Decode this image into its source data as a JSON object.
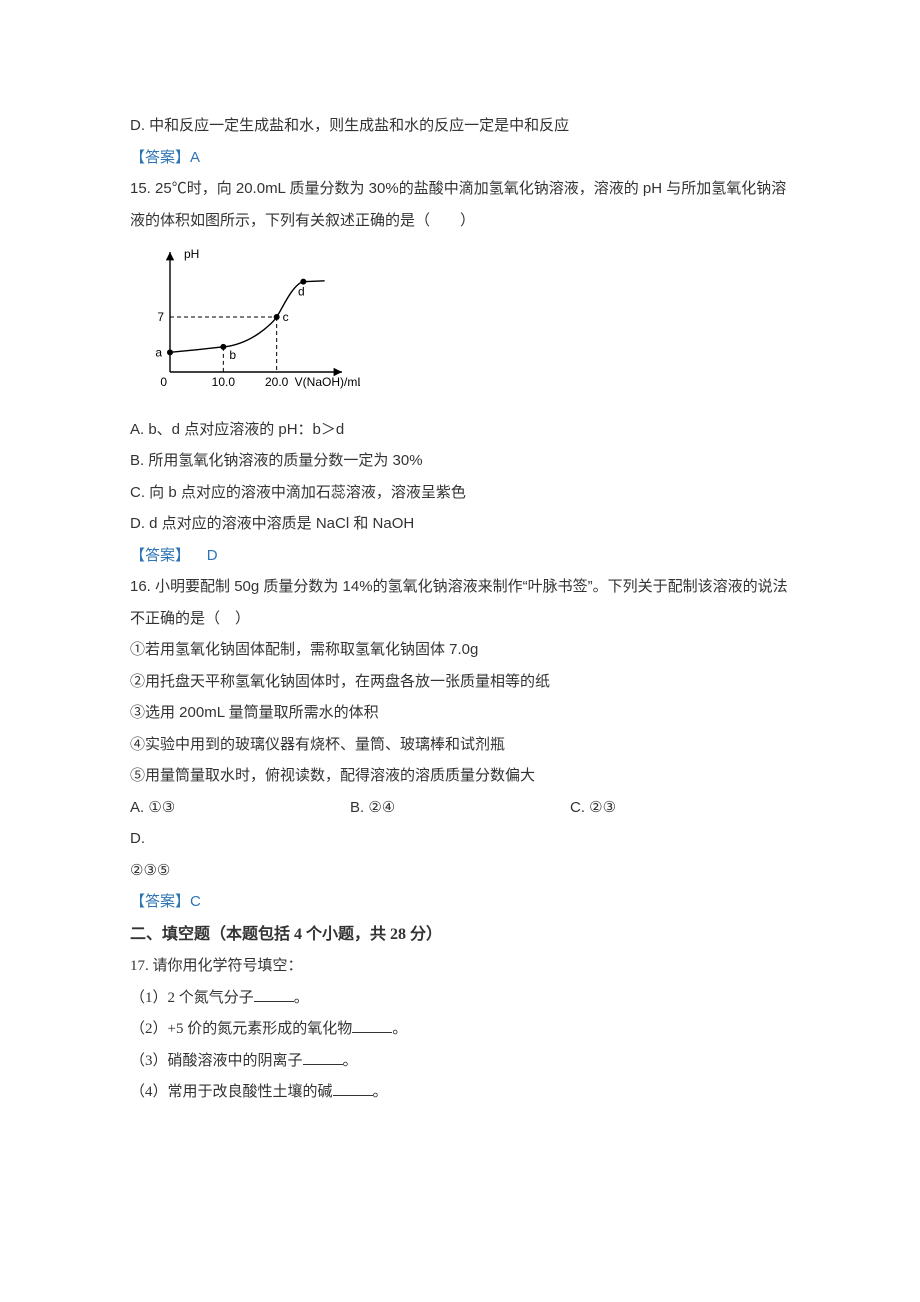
{
  "q14": {
    "option_D": "D. 中和反应一定生成盐和水，则生成盐和水的反应一定是中和反应",
    "answer_label": "【答案】",
    "answer_value": "A"
  },
  "q15": {
    "stem": "15. 25℃时，向 20.0mL 质量分数为 30%的盐酸中滴加氢氧化钠溶液，溶液的 pH 与所加氢氧化钠溶液的体积如图所示，下列有关叙述正确的是（　　）",
    "chart": {
      "type": "line",
      "y_label": "pH",
      "x_label": "V(NaOH)/mL",
      "x_ticks": [
        "0",
        "10.0",
        "20.0"
      ],
      "y_mark": "7",
      "points": {
        "a": {
          "x": 0,
          "y": 2.5,
          "label": "a",
          "label_pos": "left"
        },
        "b": {
          "x": 10.0,
          "y": 3.2,
          "label": "b",
          "label_pos": "below"
        },
        "c": {
          "x": 20.0,
          "y": 7.0,
          "label": "c",
          "label_pos": "right"
        },
        "d": {
          "x": 25.0,
          "y": 11.5,
          "label": "d",
          "label_pos": "below"
        }
      },
      "ylim": [
        0,
        14
      ],
      "xlim": [
        0,
        30
      ],
      "axis_color": "#000000",
      "point_fill": "#000000",
      "line_color": "#000000",
      "line_width": 1.4,
      "dash_color": "#000000",
      "font_size": 12
    },
    "option_A": "A. b、d 点对应溶液的 pH：b＞d",
    "option_B": "B. 所用氢氧化钠溶液的质量分数一定为 30%",
    "option_C": "C. 向 b 点对应的溶液中滴加石蕊溶液，溶液呈紫色",
    "option_D": "D. d 点对应的溶液中溶质是 NaCl 和 NaOH",
    "answer_label": "【答案】",
    "answer_value": "D"
  },
  "q16": {
    "stem": "16. 小明要配制 50g 质量分数为 14%的氢氧化钠溶液来制作“叶脉书签”。下列关于配制该溶液的说法不正确的是（　）",
    "s1": "①若用氢氧化钠固体配制，需称取氢氧化钠固体 7.0g",
    "s2": "②用托盘天平称氢氧化钠固体时，在两盘各放一张质量相等的纸",
    "s3": "③选用 200mL 量筒量取所需水的体积",
    "s4": "④实验中用到的玻璃仪器有烧杯、量筒、玻璃棒和试剂瓶",
    "s5": "⑤用量筒量取水时，俯视读数，配得溶液的溶质质量分数偏大",
    "option_A": "A. ①③",
    "option_B": "B. ②④",
    "option_C": "C. ②③",
    "option_D": "D.",
    "option_D_line2": "②③⑤",
    "answer_label": "【答案】",
    "answer_value": "C"
  },
  "section2_heading": "二、填空题（本题包括 4 个小题，共 28 分）",
  "q17": {
    "stem": "17. 请你用化学符号填空：",
    "p1_a": "（1）2 个氮气分子",
    "p1_b": "。",
    "p2_a": "（2）+5 价的氮元素形成的氧化物",
    "p2_b": "。",
    "p3_a": "（3）硝酸溶液中的阴离子",
    "p3_b": "。",
    "p4_a": "（4）常用于改良酸性土壤的碱",
    "p4_b": "。"
  }
}
